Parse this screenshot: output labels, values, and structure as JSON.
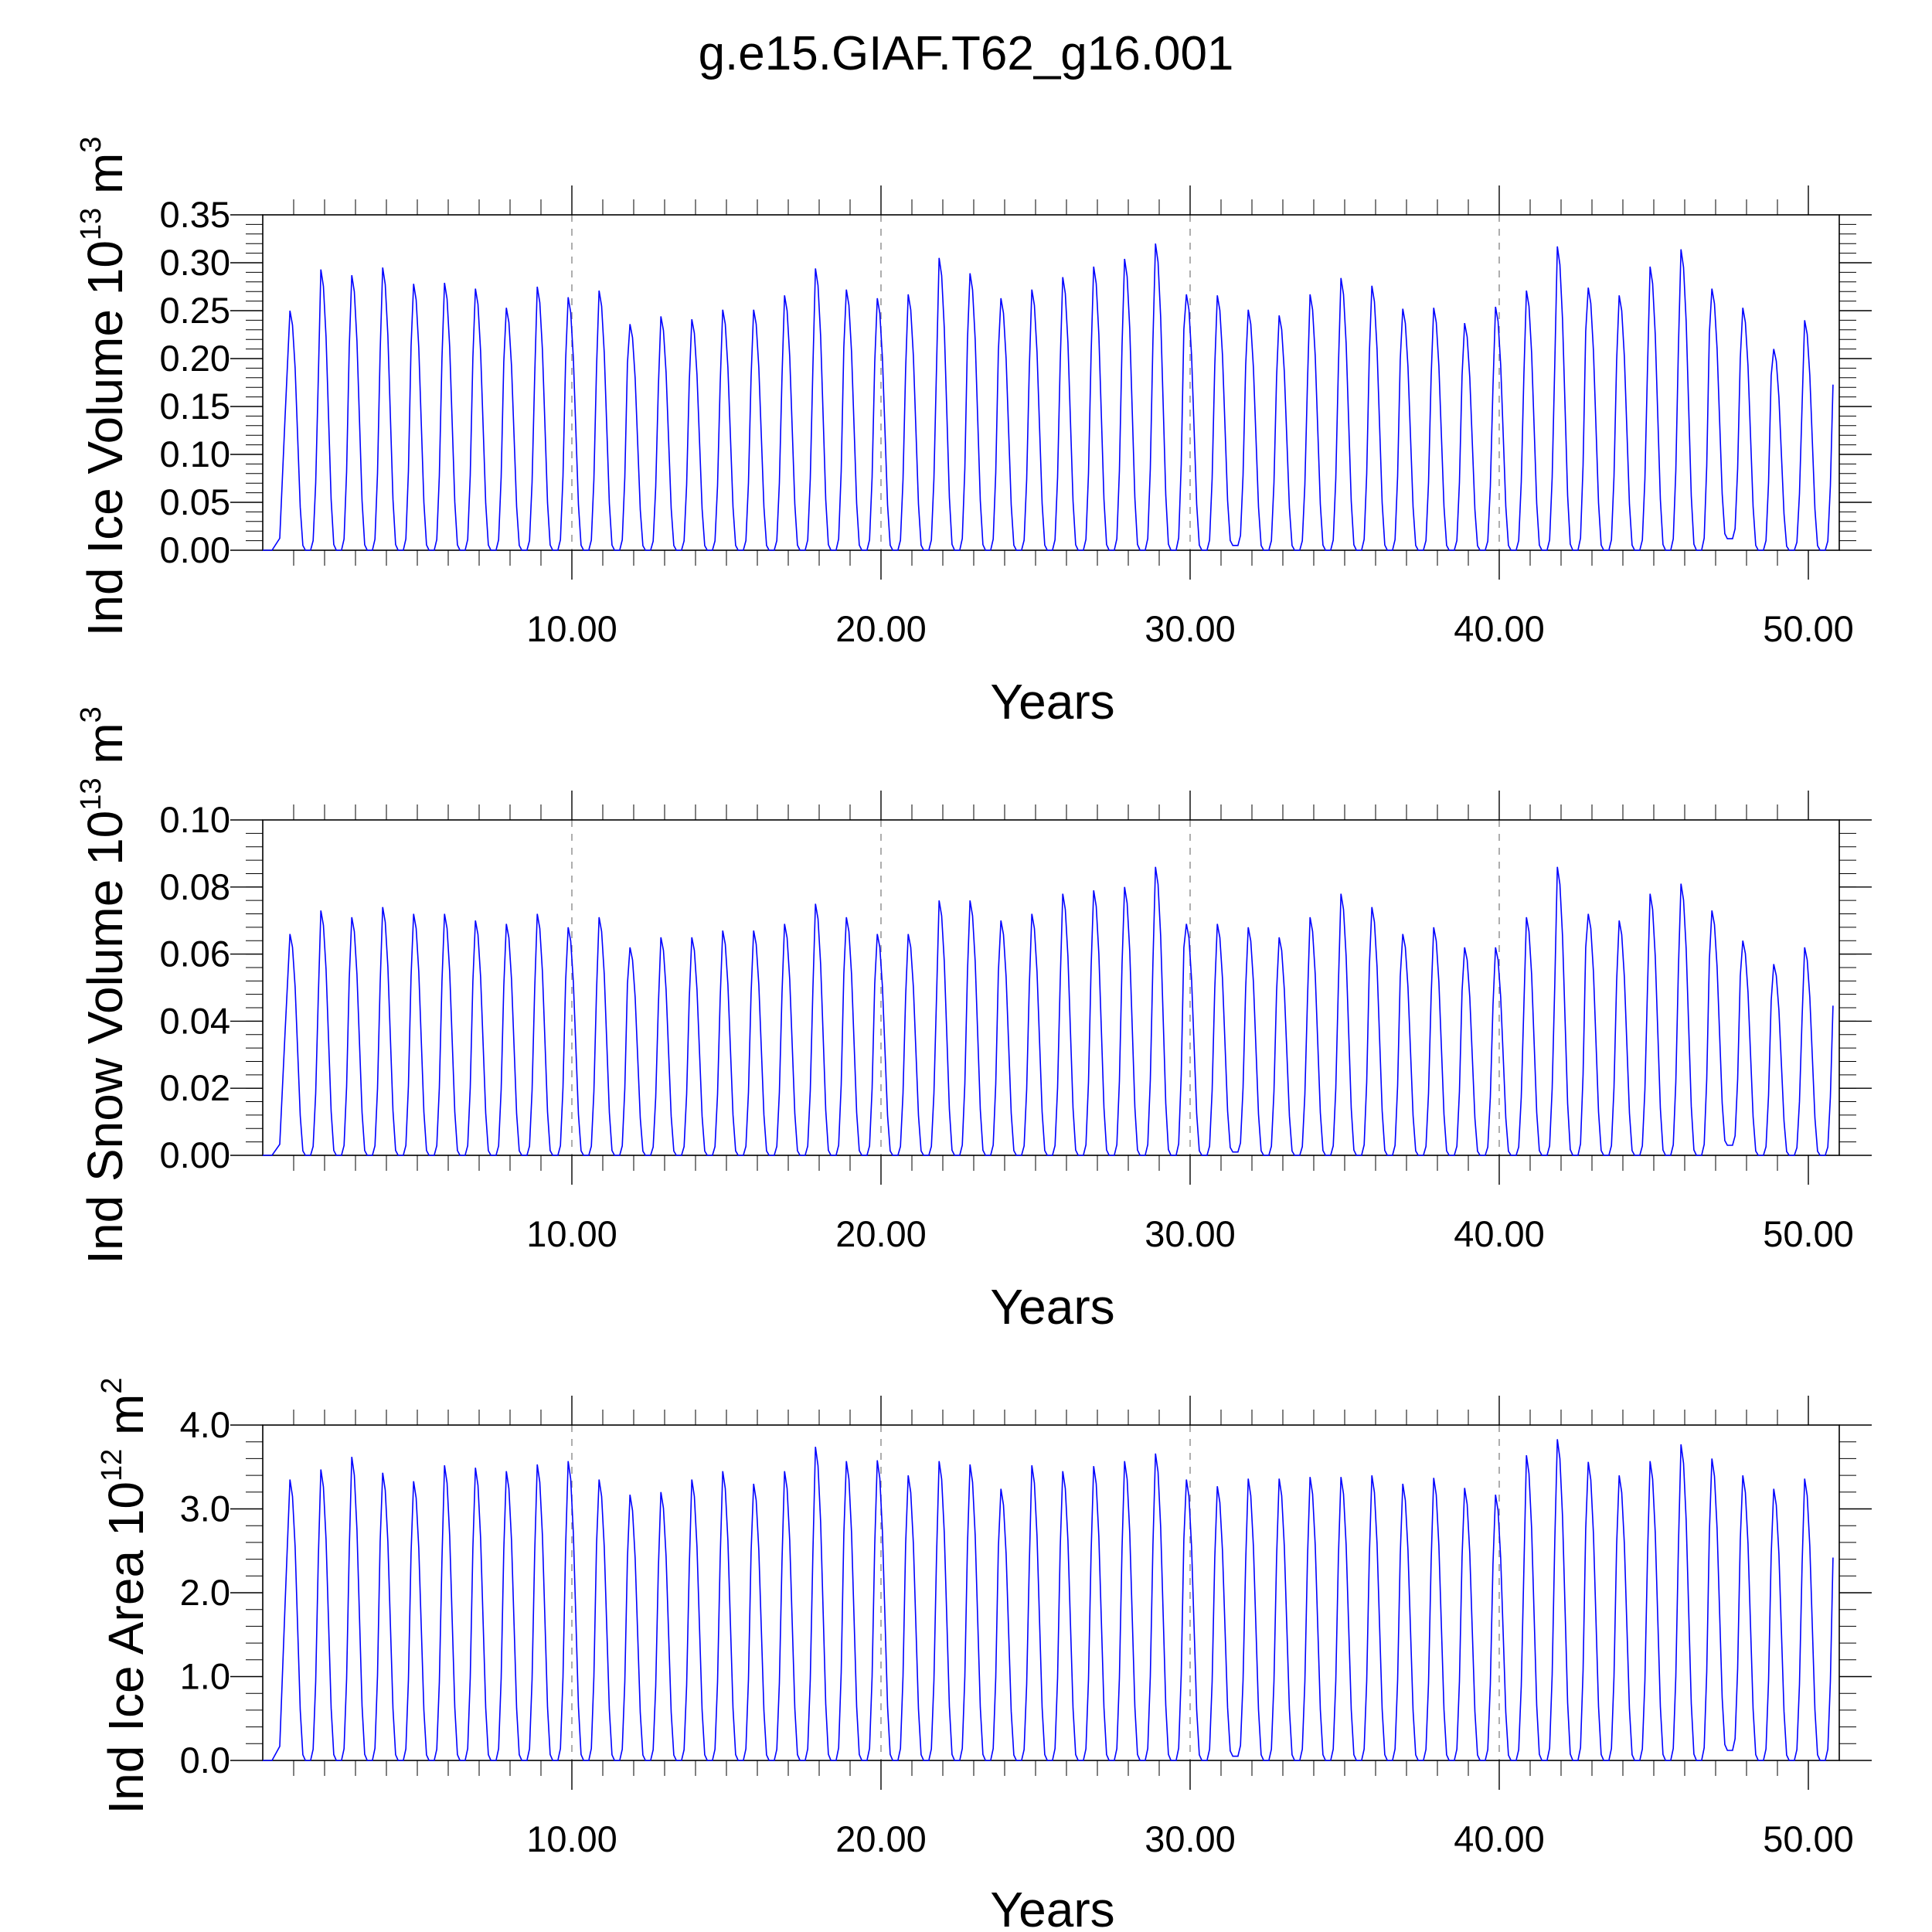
{
  "title": "g.e15.GIAF.T62_g16.001",
  "chart_data": [
    {
      "type": "line",
      "ylabel": {
        "text": "Ind Ice Volume 10",
        "exp": "13",
        "unit": " m",
        "unit_exp": "3"
      },
      "xlabel": "Years",
      "xlim": [
        0,
        51
      ],
      "ylim": [
        0,
        0.35
      ],
      "x_ticks": [
        "10.00",
        "20.00",
        "30.00",
        "40.00",
        "50.00"
      ],
      "y_ticks": [
        "0.00",
        "0.05",
        "0.10",
        "0.15",
        "0.20",
        "0.25",
        "0.30",
        "0.35"
      ],
      "y_minor_step": 0.01,
      "grid": "dashed vertical lines at 10, 20, 30, 40",
      "color": "#0000ff",
      "annual_maxima": [
        0.25,
        0.293,
        0.287,
        0.295,
        0.278,
        0.279,
        0.273,
        0.253,
        0.275,
        0.264,
        0.271,
        0.236,
        0.244,
        0.241,
        0.251,
        0.251,
        0.266,
        0.294,
        0.272,
        0.263,
        0.267,
        0.305,
        0.289,
        0.263,
        0.272,
        0.285,
        0.296,
        0.304,
        0.32,
        0.267,
        0.266,
        0.251,
        0.245,
        0.267,
        0.284,
        0.276,
        0.252,
        0.253,
        0.237,
        0.254,
        0.271,
        0.317,
        0.274,
        0.266,
        0.296,
        0.314,
        0.273,
        0.253,
        0.21,
        0.24
      ],
      "annual_minima": [
        0.0,
        0.0,
        0.0,
        0.0,
        0.0,
        0.0,
        0.0,
        0.0,
        0.0,
        0.0,
        0.0,
        0.0,
        0.0,
        0.0,
        0.0,
        0.0,
        0.0,
        0.0,
        0.0,
        0.0,
        0.0,
        0.0,
        0.0,
        0.0,
        0.0,
        0.0,
        0.0,
        0.0,
        0.0,
        0.0,
        0.005,
        0.0,
        0.0,
        0.0,
        0.0,
        0.0,
        0.0,
        0.0,
        0.0,
        0.0,
        0.0,
        0.0,
        0.0,
        0.0,
        0.0,
        0.0,
        0.012,
        0.0,
        0.0,
        0.0
      ]
    },
    {
      "type": "line",
      "ylabel": {
        "text": "Ind Snow Volume 10",
        "exp": "13",
        "unit": " m",
        "unit_exp": "3"
      },
      "xlabel": "Years",
      "xlim": [
        0,
        51
      ],
      "ylim": [
        0,
        0.1
      ],
      "x_ticks": [
        "10.00",
        "20.00",
        "30.00",
        "40.00",
        "50.00"
      ],
      "y_ticks": [
        "0.00",
        "0.02",
        "0.04",
        "0.06",
        "0.08",
        "0.10"
      ],
      "y_minor_step": 0.004,
      "grid": "dashed vertical lines at 10, 20, 30, 40",
      "color": "#0000ff",
      "annual_maxima": [
        0.066,
        0.073,
        0.071,
        0.074,
        0.072,
        0.072,
        0.07,
        0.069,
        0.072,
        0.068,
        0.071,
        0.062,
        0.065,
        0.065,
        0.067,
        0.067,
        0.069,
        0.075,
        0.071,
        0.066,
        0.066,
        0.076,
        0.076,
        0.07,
        0.072,
        0.078,
        0.079,
        0.08,
        0.086,
        0.069,
        0.069,
        0.068,
        0.065,
        0.071,
        0.078,
        0.074,
        0.066,
        0.068,
        0.062,
        0.062,
        0.071,
        0.086,
        0.072,
        0.07,
        0.078,
        0.081,
        0.073,
        0.064,
        0.057,
        0.062
      ],
      "annual_minima": [
        0.0,
        0.0,
        0.0,
        0.0,
        0.0,
        0.0,
        0.0,
        0.0,
        0.0,
        0.0,
        0.0,
        0.0,
        0.0,
        0.0,
        0.0,
        0.0,
        0.0,
        0.0,
        0.0,
        0.0,
        0.0,
        0.0,
        0.0,
        0.0,
        0.0,
        0.0,
        0.0,
        0.0,
        0.0,
        0.0,
        0.001,
        0.0,
        0.0,
        0.0,
        0.0,
        0.0,
        0.0,
        0.0,
        0.0,
        0.0,
        0.0,
        0.0,
        0.0,
        0.0,
        0.0,
        0.0,
        0.003,
        0.0,
        0.0,
        0.0
      ]
    },
    {
      "type": "line",
      "ylabel": {
        "text": "Ind Ice Area 10",
        "exp": "12",
        "unit": " m",
        "unit_exp": "2"
      },
      "xlabel": "Years",
      "xlim": [
        0,
        51
      ],
      "ylim": [
        0,
        4.0
      ],
      "x_ticks": [
        "10.00",
        "20.00",
        "30.00",
        "40.00",
        "50.00"
      ],
      "y_ticks": [
        "0.0",
        "1.0",
        "2.0",
        "3.0",
        "4.0"
      ],
      "y_minor_step": 0.2,
      "grid": "dashed vertical lines at 10, 20, 30, 40",
      "color": "#0000ff",
      "annual_maxima": [
        3.35,
        3.47,
        3.62,
        3.43,
        3.33,
        3.52,
        3.49,
        3.45,
        3.53,
        3.57,
        3.35,
        3.17,
        3.2,
        3.35,
        3.45,
        3.3,
        3.45,
        3.74,
        3.57,
        3.58,
        3.4,
        3.57,
        3.53,
        3.24,
        3.52,
        3.45,
        3.51,
        3.57,
        3.66,
        3.35,
        3.27,
        3.36,
        3.36,
        3.38,
        3.38,
        3.4,
        3.3,
        3.37,
        3.25,
        3.17,
        3.64,
        3.83,
        3.56,
        3.4,
        3.57,
        3.77,
        3.6,
        3.4,
        3.24,
        3.36
      ],
      "annual_minima": [
        0.0,
        0.0,
        0.0,
        0.0,
        0.0,
        0.0,
        0.0,
        0.0,
        0.0,
        0.0,
        0.0,
        0.0,
        0.0,
        0.0,
        0.0,
        0.0,
        0.0,
        0.0,
        0.0,
        0.0,
        0.0,
        0.0,
        0.0,
        0.0,
        0.0,
        0.0,
        0.0,
        0.0,
        0.0,
        0.0,
        0.05,
        0.0,
        0.0,
        0.0,
        0.0,
        0.0,
        0.0,
        0.0,
        0.0,
        0.0,
        0.0,
        0.0,
        0.0,
        0.0,
        0.0,
        0.0,
        0.12,
        0.0,
        0.0,
        0.0
      ]
    }
  ]
}
